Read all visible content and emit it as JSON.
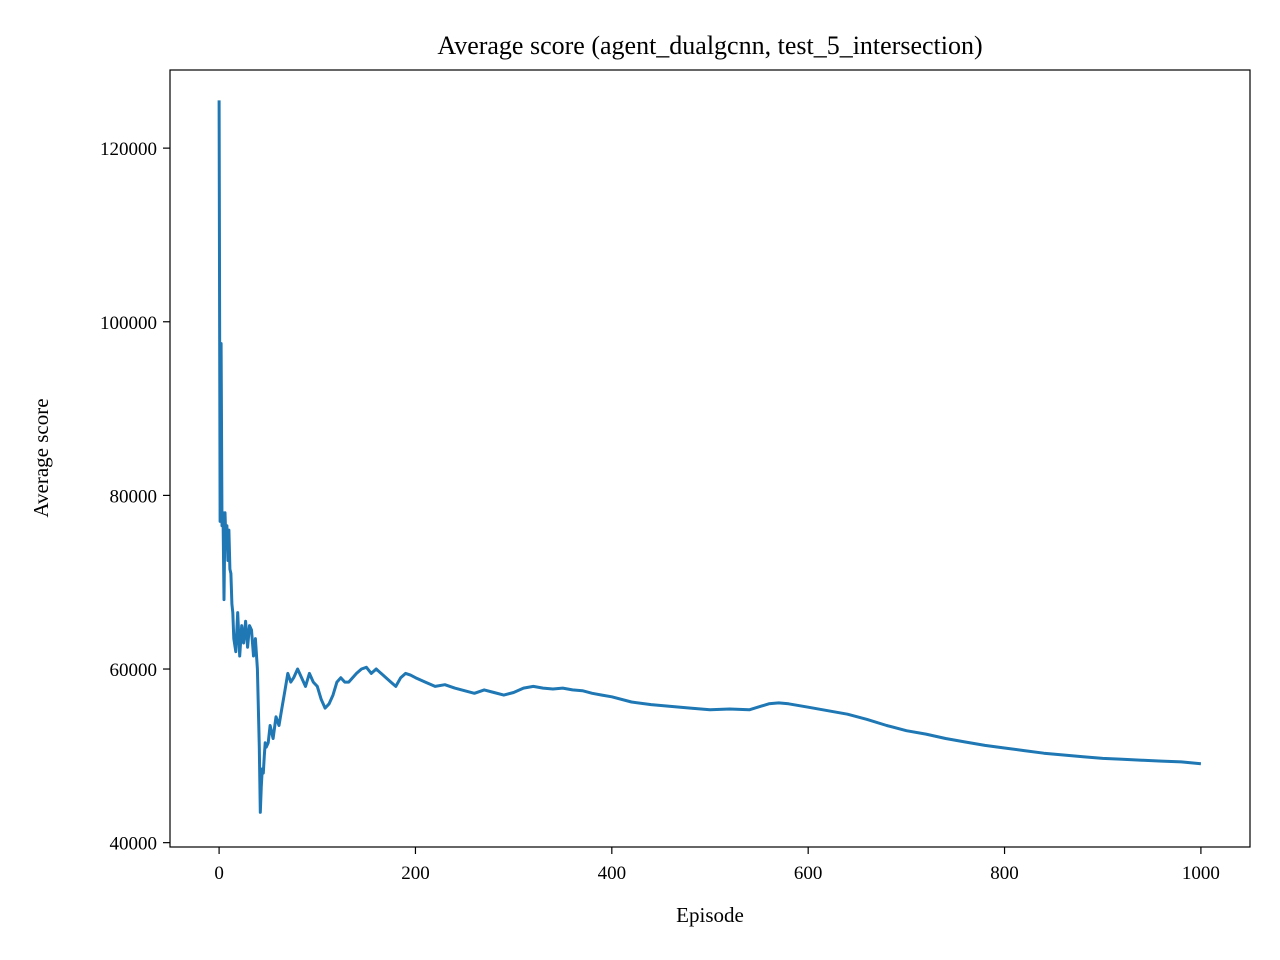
{
  "chart_data": {
    "type": "line",
    "title": "Average score (agent_dualgcnn, test_5_intersection)",
    "xlabel": "Episode",
    "ylabel": "Average score",
    "xlim": [
      -50,
      1050
    ],
    "ylim": [
      39500,
      129000
    ],
    "xticks": [
      0,
      200,
      400,
      600,
      800,
      1000
    ],
    "yticks": [
      40000,
      60000,
      80000,
      100000,
      120000
    ],
    "grid": false,
    "legend": "none",
    "series_color": "#1f77b4",
    "series": [
      {
        "x": [
          0,
          1,
          2,
          3,
          4,
          5,
          6,
          7,
          8,
          9,
          10,
          11,
          12,
          13,
          14,
          15,
          17,
          19,
          21,
          23,
          25,
          27,
          29,
          31,
          33,
          35,
          37,
          39,
          41,
          42,
          43,
          44,
          45,
          46,
          47,
          48,
          50,
          52,
          55,
          58,
          61,
          64,
          67,
          70,
          73,
          76,
          80,
          84,
          88,
          92,
          96,
          100,
          104,
          108,
          112,
          116,
          120,
          124,
          128,
          132,
          136,
          140,
          145,
          150,
          155,
          160,
          165,
          170,
          175,
          180,
          185,
          190,
          195,
          200,
          210,
          220,
          230,
          240,
          250,
          260,
          270,
          280,
          290,
          300,
          310,
          320,
          330,
          340,
          350,
          360,
          370,
          380,
          390,
          400,
          420,
          440,
          460,
          480,
          500,
          520,
          540,
          560,
          570,
          580,
          600,
          620,
          640,
          660,
          680,
          700,
          720,
          740,
          760,
          780,
          800,
          820,
          840,
          860,
          880,
          900,
          920,
          940,
          960,
          980,
          1000
        ],
        "y": [
          125500,
          77000,
          97500,
          76500,
          78000,
          68000,
          78000,
          74500,
          76500,
          72500,
          76000,
          71500,
          71000,
          67500,
          66500,
          63500,
          62000,
          66500,
          61500,
          65000,
          63000,
          65500,
          62500,
          65000,
          64500,
          61500,
          63500,
          60000,
          51000,
          43500,
          46500,
          48500,
          48000,
          50000,
          51500,
          51000,
          51500,
          53500,
          52000,
          54500,
          53500,
          55500,
          57500,
          59500,
          58500,
          59000,
          60000,
          59000,
          58000,
          59500,
          58500,
          58000,
          56500,
          55500,
          56000,
          57000,
          58500,
          59000,
          58500,
          58500,
          59000,
          59500,
          60000,
          60200,
          59500,
          60000,
          59500,
          59000,
          58500,
          58000,
          59000,
          59500,
          59300,
          59000,
          58500,
          58000,
          58200,
          57800,
          57500,
          57200,
          57600,
          57300,
          57000,
          57300,
          57800,
          58000,
          57800,
          57700,
          57800,
          57600,
          57500,
          57200,
          57000,
          56800,
          56200,
          55900,
          55700,
          55500,
          55300,
          55400,
          55300,
          56000,
          56100,
          56000,
          55600,
          55200,
          54800,
          54200,
          53500,
          52900,
          52500,
          52000,
          51600,
          51200,
          50900,
          50600,
          50300,
          50100,
          49900,
          49700,
          49600,
          49500,
          49400,
          49300,
          49100
        ]
      }
    ]
  }
}
